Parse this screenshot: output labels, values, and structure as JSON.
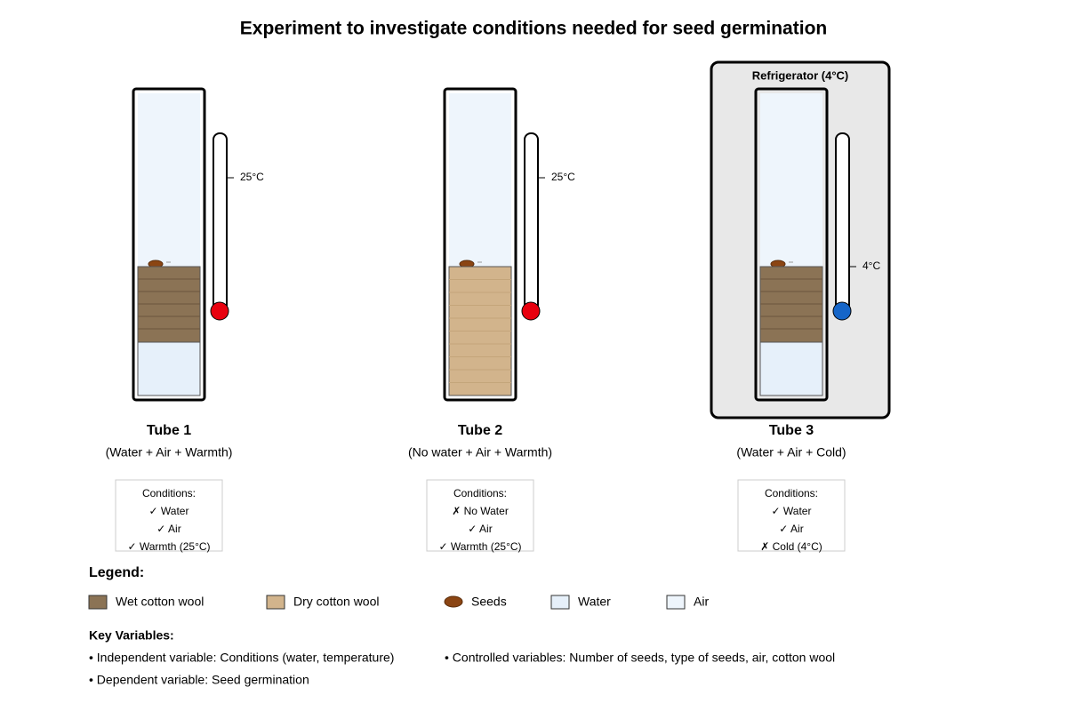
{
  "title": "Experiment to investigate conditions needed for seed germination",
  "refrigerator": {
    "label": "Refrigerator (4°C)"
  },
  "tubes": [
    {
      "label": "Tube 1",
      "subtitle": "(Water + Air + Warmth)",
      "thermometer": "25°C",
      "conditions": {
        "heading": "Conditions:",
        "items": [
          "✓ Water",
          "✓ Air",
          "✓ Warmth (25°C)"
        ]
      }
    },
    {
      "label": "Tube 2",
      "subtitle": "(No water + Air + Warmth)",
      "thermometer": "25°C",
      "conditions": {
        "heading": "Conditions:",
        "items": [
          "✗ No Water",
          "✓ Air",
          "✓ Warmth (25°C)"
        ]
      }
    },
    {
      "label": "Tube 3",
      "subtitle": "(Water + Air + Cold)",
      "thermometer": "4°C",
      "conditions": {
        "heading": "Conditions:",
        "items": [
          "✓ Water",
          "✓ Air",
          "✗ Cold (4°C)"
        ]
      }
    }
  ],
  "legend": {
    "title": "Legend:",
    "items": [
      "Wet cotton wool",
      "Dry cotton wool",
      "Seeds",
      "Water",
      "Air"
    ]
  },
  "key_variables": {
    "title": "Key Variables:",
    "items": [
      "• Independent variable: Conditions (water, temperature)",
      "• Controlled variables: Number of seeds, type of seeds, air, cotton wool",
      "• Dependent variable: Seed germination"
    ]
  }
}
